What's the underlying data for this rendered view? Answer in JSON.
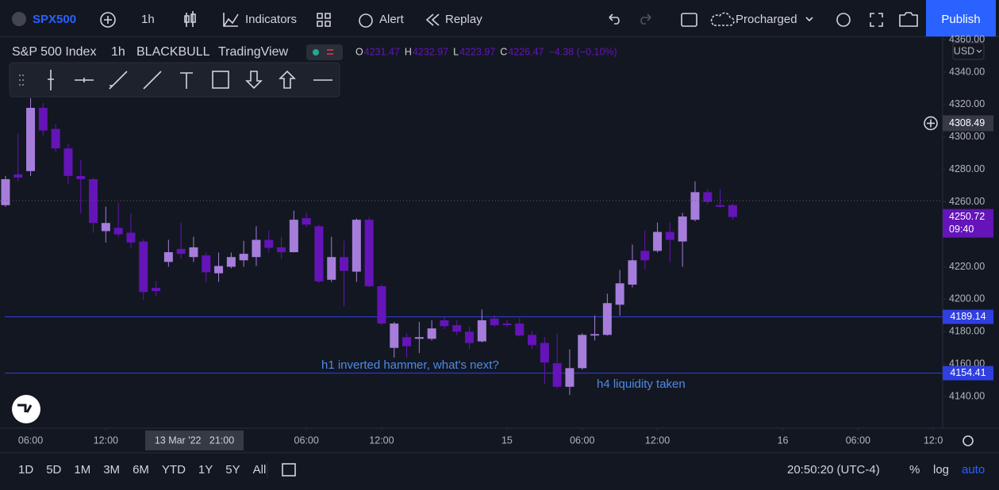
{
  "toolbar": {
    "symbol": "SPX500",
    "interval": "1h",
    "indicators": "Indicators",
    "alert": "Alert",
    "replay": "Replay",
    "layout": "Procharged",
    "publish": "Publish"
  },
  "legend": {
    "title": "S&P 500 Index",
    "interval": "1h",
    "exchange": "BLACKBULL",
    "source": "TradingView",
    "ohlc": [
      {
        "key": "O",
        "value": "4231.47"
      },
      {
        "key": "H",
        "value": "4232.97"
      },
      {
        "key": "L",
        "value": "4223.97"
      },
      {
        "key": "C",
        "value": "4226.47"
      }
    ],
    "change": "−4.38 (−0.10%)"
  },
  "annotations": [
    "h1 inverted hammer, what's next?",
    "h4 liquidity taken"
  ],
  "bottom": {
    "ranges": [
      "1D",
      "5D",
      "1M",
      "3M",
      "6M",
      "YTD",
      "1Y",
      "5Y",
      "All"
    ],
    "clock": "20:50:20 (UTC-4)",
    "scale": [
      "%",
      "log",
      "auto"
    ]
  },
  "chart_data": {
    "type": "candlestick",
    "currency": "USD",
    "up_color": "#a67ddb",
    "down_color": "#6414b8",
    "open": [
      4258,
      4277,
      4279,
      4318,
      4305,
      4293,
      4276,
      4274,
      4242,
      4244,
      4241,
      4235.6,
      4207,
      4223,
      4231,
      4226,
      4227,
      4216,
      4220,
      4224,
      4226,
      4236.6,
      4232,
      4229,
      4250,
      4245,
      4212,
      4226,
      4217,
      4249,
      4208,
      4170,
      4176.6,
      4175.6,
      4175.6,
      4187,
      4184,
      4180,
      4174,
      4188,
      4185,
      4185,
      4178,
      4173,
      4160.5,
      4146,
      4157.5,
      4177.6,
      4178,
      4196.6,
      4209,
      4229.8,
      4229.8,
      4241.5,
      4235.6,
      4249,
      4266,
      4258,
      4258
    ],
    "high": [
      4276,
      4302,
      4324,
      4321,
      4308,
      4296,
      4286,
      4275,
      4257,
      4259.5,
      4253,
      4237,
      4211,
      4236.6,
      4247,
      4238.5,
      4228.8,
      4228.8,
      4228.8,
      4236,
      4245,
      4242.4,
      4238.5,
      4254.6,
      4253.2,
      4245.9,
      4238.5,
      4236,
      4249.8,
      4250.7,
      4209.3,
      4186,
      4179,
      4186,
      4187,
      4188.8,
      4187,
      4183,
      4193.7,
      4190,
      4187,
      4188.3,
      4180.5,
      4176.6,
      4179,
      4169,
      4179,
      4190,
      4203.4,
      4218,
      4233.7,
      4242.4,
      4247.3,
      4247.3,
      4253.2,
      4272.7,
      4267.8,
      4267.8,
      4259
    ],
    "low": [
      4257,
      4272.7,
      4276,
      4301,
      4291,
      4271,
      4253,
      4241,
      4235,
      4238.5,
      4231.7,
      4199.5,
      4202,
      4220,
      4224.9,
      4223,
      4210.7,
      4210.7,
      4219,
      4220,
      4220.5,
      4228.8,
      4224.9,
      4228.8,
      4244.4,
      4210.2,
      4210.7,
      4195.6,
      4210.7,
      4207.3,
      4184,
      4164,
      4164,
      4166.8,
      4174.6,
      4181.5,
      4178,
      4169.3,
      4173.4,
      4183,
      4183,
      4177,
      4169.3,
      4147.8,
      4145,
      4141,
      4156.6,
      4174.6,
      4177.6,
      4189.8,
      4207.3,
      4218.5,
      4228.8,
      4222.9,
      4220,
      4248,
      4258.5,
      4256.6,
      4249
    ],
    "close": [
      4274,
      4275,
      4318,
      4304,
      4293,
      4276,
      4274,
      4247,
      4247,
      4240,
      4235,
      4204.4,
      4205,
      4229,
      4228,
      4232,
      4216.6,
      4220.5,
      4226,
      4228,
      4236.6,
      4231.7,
      4229,
      4249,
      4246,
      4211,
      4226,
      4217.5,
      4249,
      4208,
      4185,
      4185,
      4171,
      4176.6,
      4182,
      4183.4,
      4180,
      4173,
      4187,
      4184,
      4184,
      4177.6,
      4171.7,
      4161,
      4146,
      4157.5,
      4178,
      4178.5,
      4197.6,
      4209.8,
      4224,
      4224,
      4241.5,
      4236.6,
      4251,
      4266,
      4260,
      4257,
      4250.72
    ],
    "xlim": [
      -0.44,
      74.75
    ],
    "xticks": [
      {
        "value": 2,
        "label": "06:00"
      },
      {
        "value": 8,
        "label": "12:00"
      },
      {
        "value": 24,
        "label": "06:00"
      },
      {
        "value": 30,
        "label": "12:00"
      },
      {
        "value": 40,
        "label": "15"
      },
      {
        "value": 46,
        "label": "06:00"
      },
      {
        "value": 52,
        "label": "12:00"
      },
      {
        "value": 62,
        "label": "16"
      },
      {
        "value": 68,
        "label": "06:00"
      },
      {
        "value": 74,
        "label": "12:0"
      }
    ],
    "ylim": [
      4120.5,
      4362
    ],
    "yticks": [
      {
        "value": 4140,
        "label": "4140.00"
      },
      {
        "value": 4160,
        "label": "4160.00"
      },
      {
        "value": 4180,
        "label": "4180.00"
      },
      {
        "value": 4200,
        "label": "4200.00"
      },
      {
        "value": 4220,
        "label": "4220.00"
      },
      {
        "value": 4240,
        "label": "4240.00"
      },
      {
        "value": 4260,
        "label": "4260.00"
      },
      {
        "value": 4280,
        "label": "4280.00"
      },
      {
        "value": 4300,
        "label": "4300.00"
      },
      {
        "value": 4320,
        "label": "4320.00"
      },
      {
        "value": 4340,
        "label": "4340.00"
      },
      {
        "value": 4360,
        "label": "4360.00"
      }
    ],
    "hlines": [
      4189.14,
      4154.41
    ],
    "hline_color": "#2f3fe0",
    "last_price": 4250.72,
    "countdown": "09:40",
    "crosshair": {
      "price": 4308.49,
      "time": "13 Mar '22   21:00"
    }
  }
}
